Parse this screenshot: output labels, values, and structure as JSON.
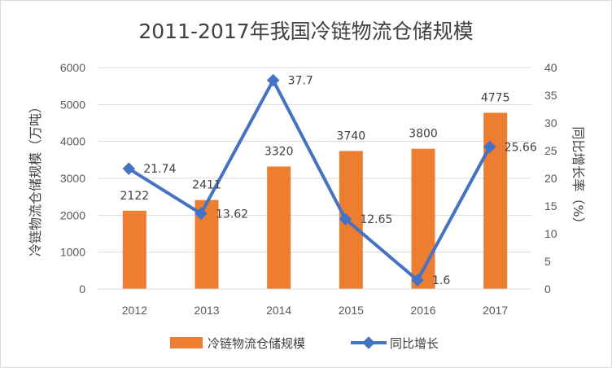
{
  "chart_data": {
    "type": "bar",
    "title": "2011-2017年我国冷链物流仓储规模",
    "categories": [
      "2012",
      "2013",
      "2014",
      "2015",
      "2016",
      "2017"
    ],
    "series": [
      {
        "name": "冷链物流仓储规模",
        "type": "bar",
        "axis": "left",
        "color": "#ed7d31",
        "values": [
          2122,
          2411,
          3320,
          3740,
          3800,
          4775
        ],
        "labels": [
          "2122",
          "2411",
          "3320",
          "3740",
          "3800",
          "4775"
        ]
      },
      {
        "name": "同比增长",
        "type": "line",
        "axis": "right",
        "color": "#4472c4",
        "values": [
          21.74,
          13.62,
          37.7,
          12.65,
          1.6,
          25.66
        ],
        "labels": [
          "21.74",
          "13.62",
          "37.7",
          "12.65",
          "1.6",
          "25.66"
        ]
      }
    ],
    "ylabel": "冷链物流仓储规模（万吨）",
    "y2label": "同比增长率（%）",
    "ylim": [
      0,
      6000
    ],
    "y2lim": [
      0,
      40
    ],
    "yticks": [
      "0",
      "1000",
      "2000",
      "3000",
      "4000",
      "5000",
      "6000"
    ],
    "y2ticks": [
      "0",
      "5",
      "10",
      "15",
      "20",
      "25",
      "30",
      "35",
      "40"
    ],
    "grid": true,
    "legend": "bottom"
  }
}
